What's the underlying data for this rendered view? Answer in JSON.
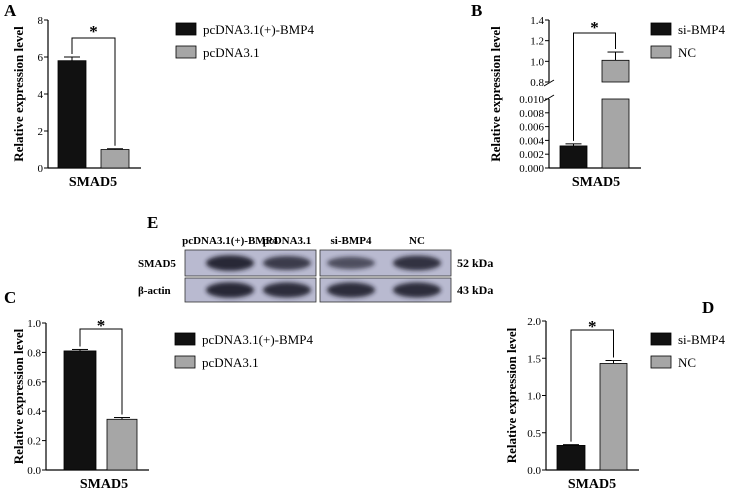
{
  "colors": {
    "bar1": "#111111",
    "bar2": "#a6a6a6",
    "blot_bg": "#b9bad0",
    "band": "#1c1c2a"
  },
  "chart_data": [
    {
      "panel": "A",
      "type": "bar",
      "categories": [
        "SMAD5"
      ],
      "series": [
        {
          "name": "pcDNA3.1(+)-BMP4",
          "values": [
            5.8
          ],
          "error": [
            0.2
          ]
        },
        {
          "name": "pcDNA3.1",
          "values": [
            1.0
          ],
          "error": [
            0.04
          ]
        }
      ],
      "ylabel": "Relative expression level",
      "ylim": [
        0,
        8
      ],
      "yticks": [
        "0",
        "2",
        "4",
        "6",
        "8"
      ],
      "significance": "*",
      "legend": "right"
    },
    {
      "panel": "B",
      "type": "bar",
      "broken_axis": true,
      "categories": [
        "SMAD5"
      ],
      "series": [
        {
          "name": "si-BMP4",
          "values": [
            0.0032
          ],
          "error": [
            0.0003
          ]
        },
        {
          "name": "NC",
          "values": [
            1.01
          ],
          "error": [
            0.08
          ]
        }
      ],
      "ylabel": "Relative expression level",
      "ylim_lower": [
        0,
        0.01
      ],
      "ylim_upper": [
        0.8,
        1.4
      ],
      "yticks_lower": [
        "0.000",
        "0.002",
        "0.004",
        "0.006",
        "0.008",
        "0.010"
      ],
      "yticks_upper": [
        "0.8",
        "1.0",
        "1.2",
        "1.4"
      ],
      "significance": "*",
      "legend": "right"
    },
    {
      "panel": "C",
      "type": "bar",
      "categories": [
        "SMAD5"
      ],
      "series": [
        {
          "name": "pcDNA3.1(+)-BMP4",
          "values": [
            0.81
          ],
          "error": [
            0.01
          ]
        },
        {
          "name": "pcDNA3.1",
          "values": [
            0.345
          ],
          "error": [
            0.012
          ]
        }
      ],
      "ylabel": "Relative expression level",
      "ylim": [
        0,
        1.0
      ],
      "yticks": [
        "0.0",
        "0.2",
        "0.4",
        "0.6",
        "0.8",
        "1.0"
      ],
      "significance": "*",
      "legend": "right"
    },
    {
      "panel": "D",
      "type": "bar",
      "categories": [
        "SMAD5"
      ],
      "series": [
        {
          "name": "si-BMP4",
          "values": [
            0.33
          ],
          "error": [
            0.01
          ]
        },
        {
          "name": "NC",
          "values": [
            1.43
          ],
          "error": [
            0.04
          ]
        }
      ],
      "ylabel": "Relative expression level",
      "ylim": [
        0,
        2.0
      ],
      "yticks": [
        "0.0",
        "0.5",
        "1.0",
        "1.5",
        "2.0"
      ],
      "significance": "*",
      "legend": "right"
    }
  ],
  "blot": {
    "panel": "E",
    "lanes": [
      "pcDNA3.1(+)-BMP4",
      "pcDNA3.1",
      "si-BMP4",
      "NC"
    ],
    "rows": [
      {
        "label": "SMAD5",
        "kda": "52 kDa",
        "intensity": [
          0.95,
          0.75,
          0.55,
          0.85
        ]
      },
      {
        "label": "β-actin",
        "kda": "43 kDa",
        "intensity": [
          0.95,
          0.9,
          0.9,
          0.9
        ]
      }
    ]
  }
}
